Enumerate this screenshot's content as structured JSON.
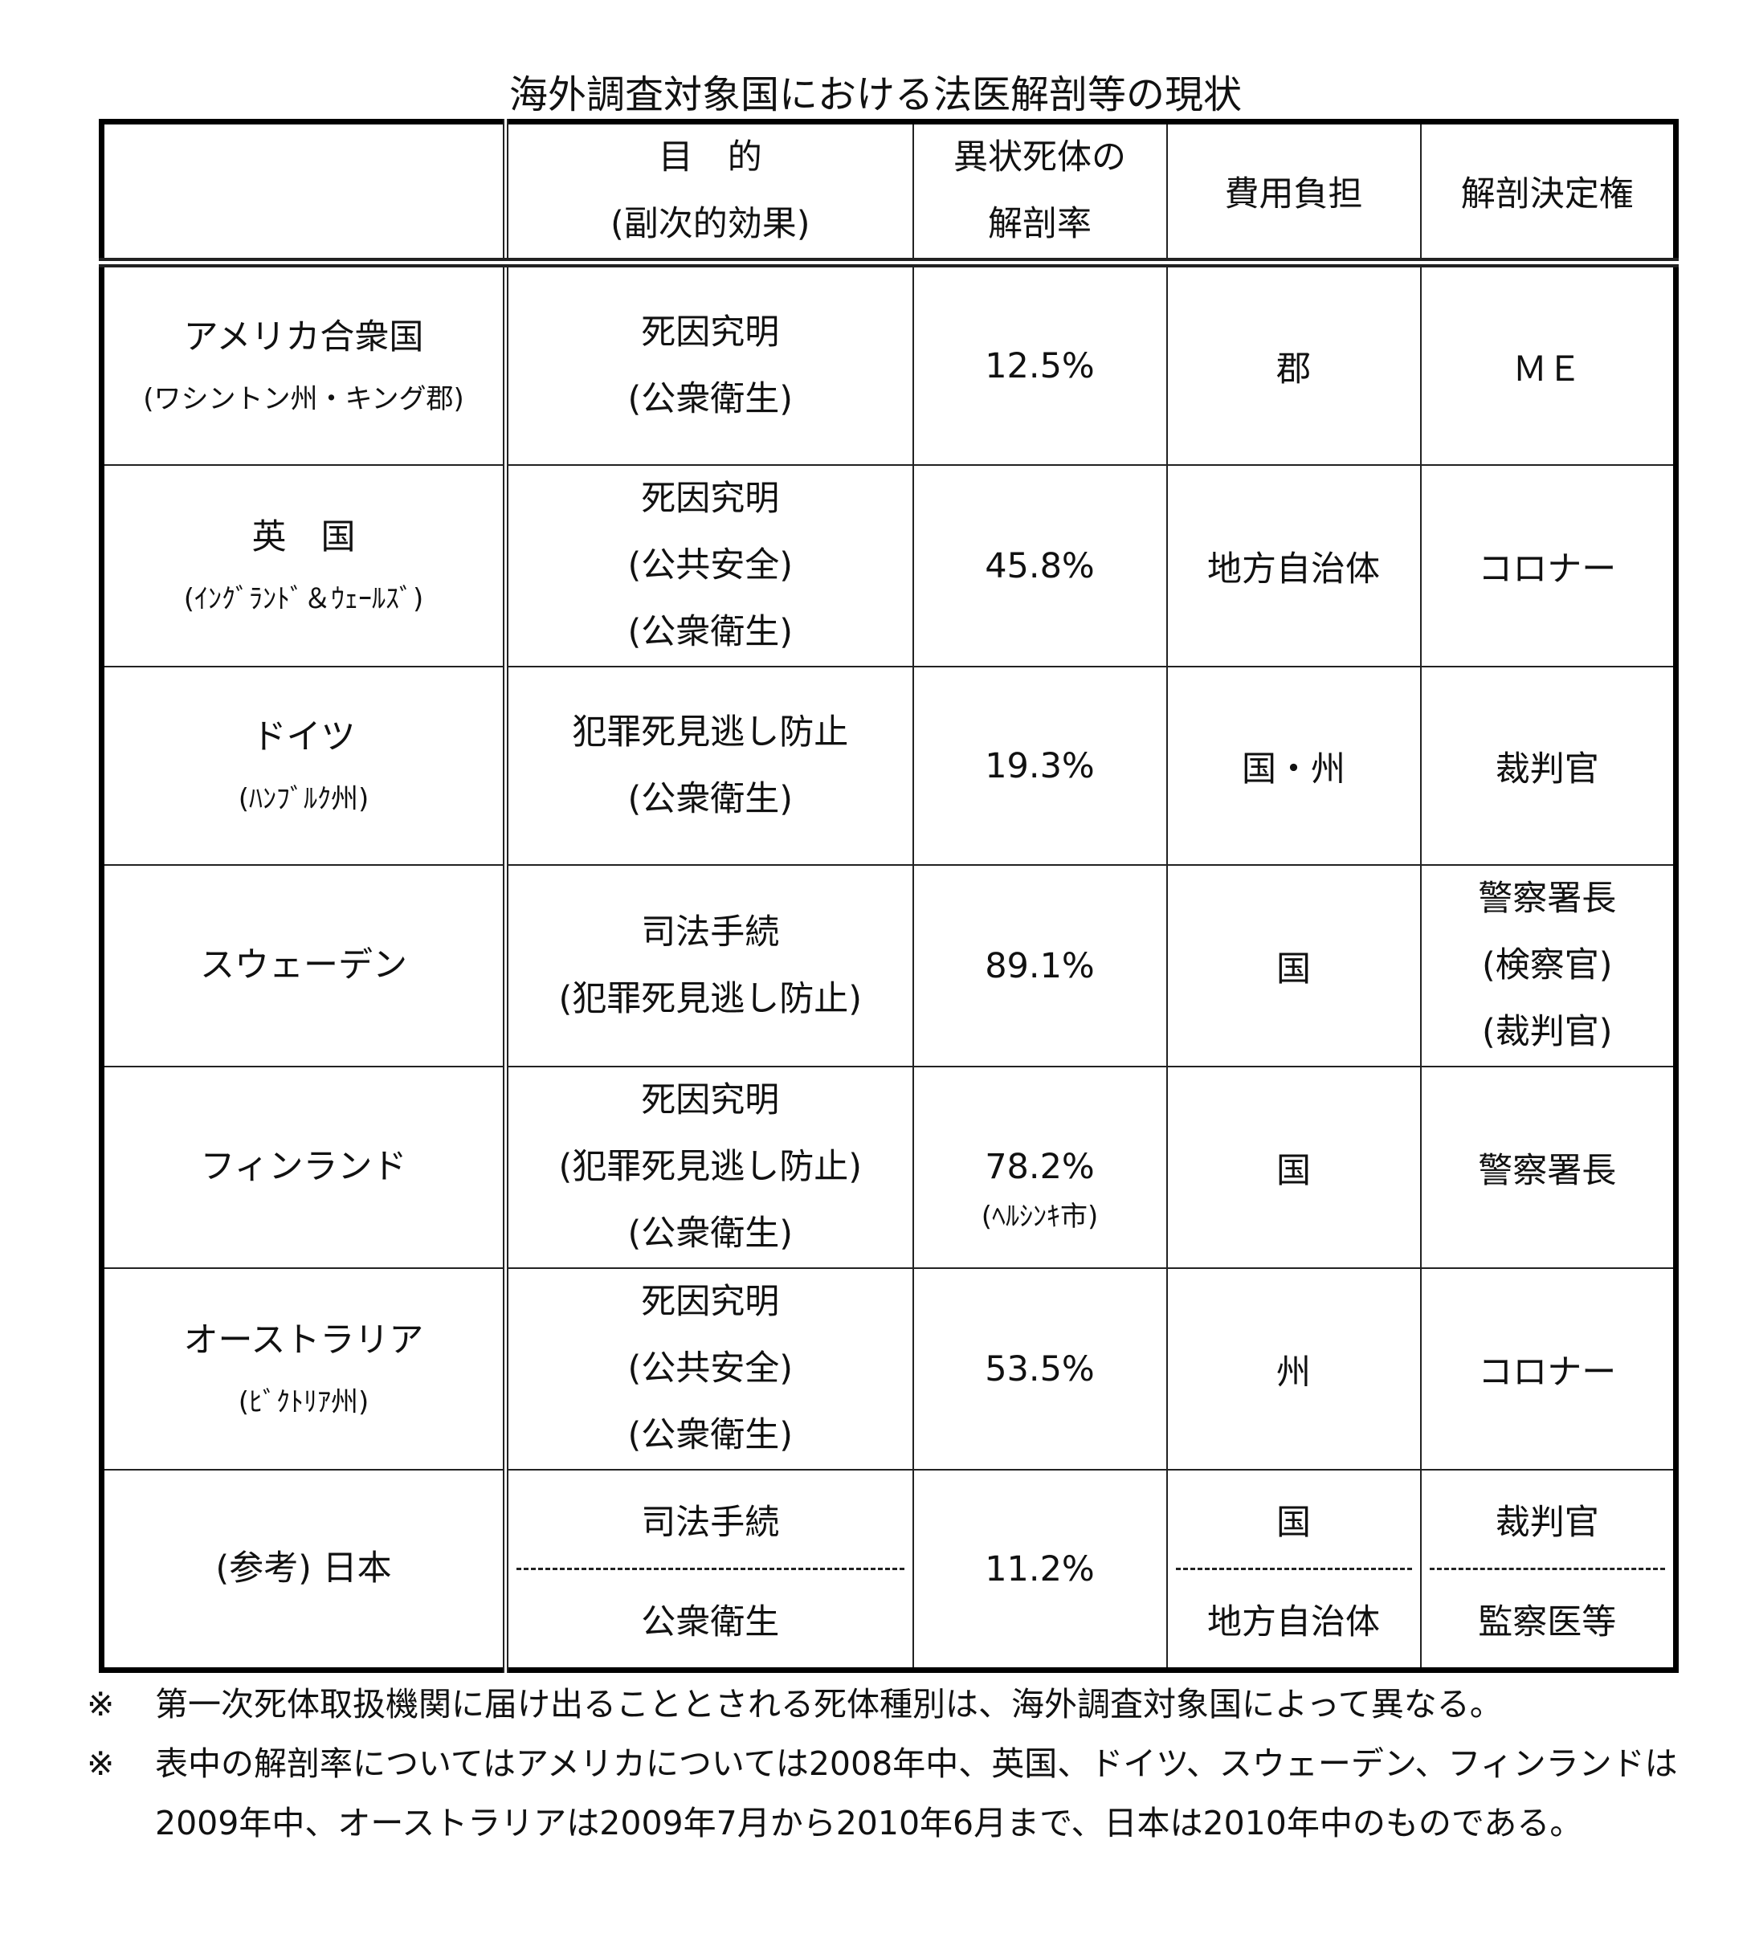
{
  "title": "海外調査対象国における法医解剖等の現状",
  "headers": {
    "purpose": [
      "目　的",
      "(副次的効果)"
    ],
    "rate": [
      "異状死体の",
      "解剖率"
    ],
    "cost": "費用負担",
    "authority": "解剖決定権"
  },
  "rows": [
    {
      "name": "アメリカ合衆国",
      "sub": "(ワシントン州・キング郡)",
      "purpose": [
        "死因究明",
        "(公衆衛生)"
      ],
      "rate": "12.5%",
      "cost": "郡",
      "authority": [
        "ＭＥ"
      ]
    },
    {
      "name": "英　国",
      "sub": "(ｲﾝｸﾞﾗﾝﾄﾞ＆ｳｪｰﾙｽﾞ)",
      "purpose": [
        "死因究明",
        "(公共安全)",
        "(公衆衛生)"
      ],
      "rate": "45.8%",
      "cost": "地方自治体",
      "authority": [
        "コロナー"
      ]
    },
    {
      "name": "ドイツ",
      "sub": "(ﾊﾝﾌﾞﾙｸ州)",
      "purpose": [
        "犯罪死見逃し防止",
        "(公衆衛生)"
      ],
      "rate": "19.3%",
      "cost": "国・州",
      "authority": [
        "裁判官"
      ]
    },
    {
      "name": "スウェーデン",
      "purpose": [
        "司法手続",
        "(犯罪死見逃し防止)"
      ],
      "rate": "89.1%",
      "cost": "国",
      "authority": [
        "警察署長",
        "(検察官)",
        "(裁判官)"
      ]
    },
    {
      "name": "フィンランド",
      "purpose": [
        "死因究明",
        "(犯罪死見逃し防止)",
        "(公衆衛生)"
      ],
      "rate": "78.2%",
      "rate_note": "(ﾍﾙｼﾝｷ市)",
      "cost": "国",
      "authority": [
        "警察署長"
      ]
    },
    {
      "name": "オーストラリア",
      "sub": "(ﾋﾞｸﾄﾘｱ州)",
      "purpose": [
        "死因究明",
        "(公共安全)",
        "(公衆衛生)"
      ],
      "rate": "53.5%",
      "cost": "州",
      "authority": [
        "コロナー"
      ]
    },
    {
      "name": "(参考) 日本",
      "purpose": [
        "司法手続",
        "公衆衛生"
      ],
      "rate": "11.2%",
      "cost": [
        "国",
        "地方自治体"
      ],
      "authority": [
        "裁判官",
        "監察医等"
      ]
    }
  ],
  "notes": [
    {
      "mark": "※",
      "text": "第一次死体取扱機関に届け出ることとされる死体種別は、海外調査対象国によって異なる。"
    },
    {
      "mark": "※",
      "text": "表中の解剖率についてはアメリカについては2008年中、英国、ドイツ、スウェーデン、フィンランドは2009年中、オーストラリアは2009年7月から2010年6月まで、日本は2010年中のものである。"
    }
  ]
}
